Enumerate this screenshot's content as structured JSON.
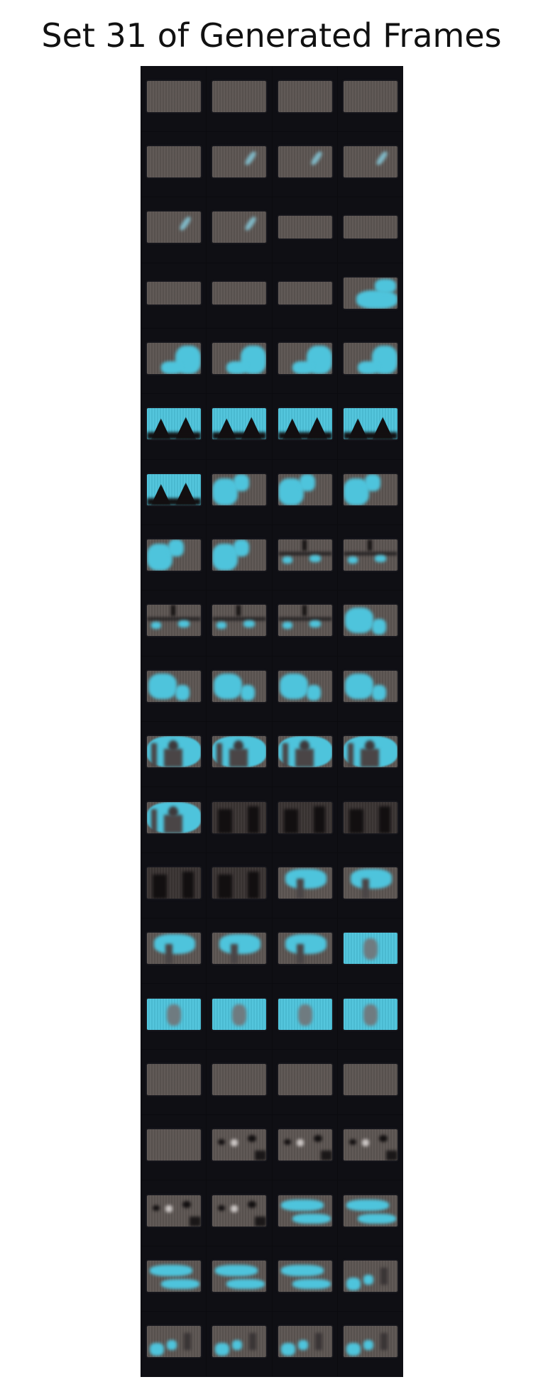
{
  "title": "Set 31 of Generated Frames",
  "colors": {
    "background": "#ffffff",
    "grid_background": "#0b0b0f",
    "frame_gray": "#5c5552",
    "cyan": "#4ec4dc"
  },
  "grid": {
    "rows": 20,
    "cols": 4
  },
  "frames": [
    [
      "plain",
      "plain",
      "plain",
      "plain"
    ],
    [
      "plain",
      "streak",
      "streak",
      "streak"
    ],
    [
      "streak",
      "streak",
      "thin",
      "thin"
    ],
    [
      "thin",
      "thin",
      "thin",
      "cyan-bottom"
    ],
    [
      "cyan-right",
      "cyan-right",
      "cyan-right",
      "cyan-right"
    ],
    [
      "cyan-peaks",
      "cyan-peaks",
      "cyan-peaks",
      "cyan-peaks"
    ],
    [
      "cyan-peaks",
      "cyan-left",
      "cyan-left",
      "cyan-left"
    ],
    [
      "cyan-left",
      "cyan-left",
      "bars",
      "bars"
    ],
    [
      "bars",
      "bars",
      "bars",
      "cyan-mix"
    ],
    [
      "cyan-mix",
      "cyan-mix",
      "cyan-mix",
      "cyan-mix"
    ],
    [
      "cyan-figure",
      "cyan-figure",
      "cyan-figure",
      "cyan-figure"
    ],
    [
      "cyan-figure",
      "dark-figure",
      "dark-figure",
      "dark-figure"
    ],
    [
      "dark-figure",
      "dark-figure",
      "cyan-top",
      "cyan-top"
    ],
    [
      "cyan-top",
      "cyan-top",
      "cyan-top",
      "cyan-full"
    ],
    [
      "cyan-full",
      "cyan-full",
      "cyan-full",
      "cyan-full"
    ],
    [
      "plain",
      "plain",
      "plain",
      "plain"
    ],
    [
      "plain",
      "spots",
      "spots",
      "spots"
    ],
    [
      "spots",
      "spots",
      "cyan-wave",
      "cyan-wave"
    ],
    [
      "cyan-wave",
      "cyan-wave",
      "cyan-wave",
      "cyan-spots"
    ],
    [
      "cyan-spots",
      "cyan-spots",
      "cyan-spots",
      "cyan-spots"
    ]
  ]
}
